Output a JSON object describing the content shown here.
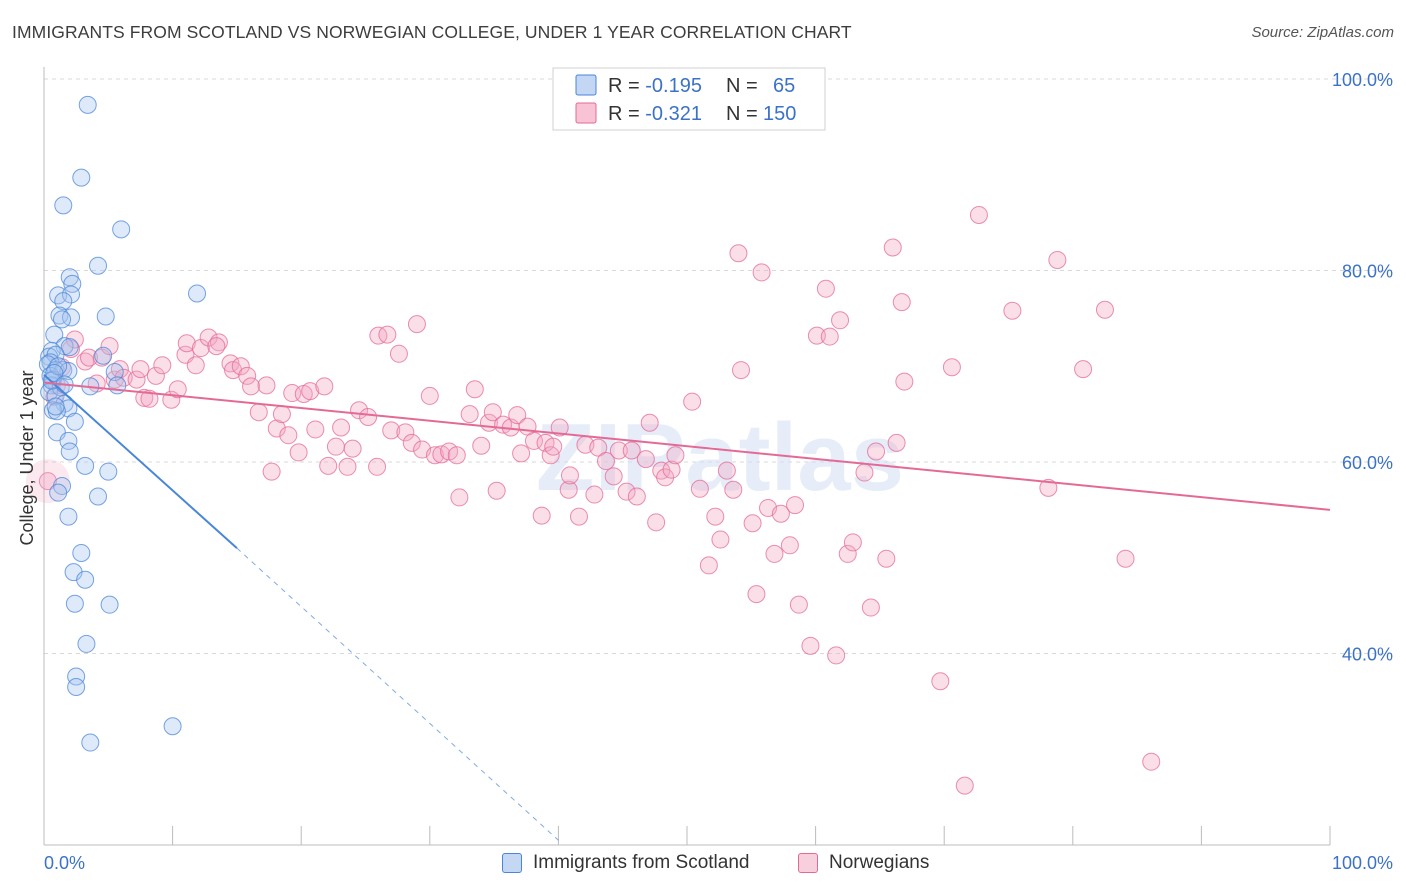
{
  "title": "IMMIGRANTS FROM SCOTLAND VS NORWEGIAN COLLEGE, UNDER 1 YEAR CORRELATION CHART",
  "source": "Source: ZipAtlas.com",
  "watermark": "ZIPatlas",
  "colors": {
    "blue": "#4a86d8",
    "blue_fill": "#a9c6ef",
    "pink": "#e46a96",
    "pink_fill": "#f3a9c3",
    "tick_text": "#3b72c8",
    "grid": "#d9d9d9"
  },
  "legend": {
    "rows": [
      {
        "r_label": "R = ",
        "r_value": "-0.195",
        "n_label": "N = ",
        "n_value": "65"
      },
      {
        "r_label": "R = ",
        "r_value": "-0.321",
        "n_label": "N = ",
        "n_value": "150"
      }
    ]
  },
  "chart_data": {
    "type": "scatter",
    "title": "IMMIGRANTS FROM SCOTLAND VS NORWEGIAN COLLEGE, UNDER 1 YEAR CORRELATION CHART",
    "xlabel": "",
    "ylabel": "College, Under 1 year",
    "xlim": [
      0,
      100
    ],
    "ylim": [
      20,
      100
    ],
    "x_tick_labels": [
      "0.0%",
      "100.0%"
    ],
    "y_tick_labels": [
      "40.0%",
      "60.0%",
      "80.0%",
      "100.0%"
    ],
    "y_ticks": [
      40,
      60,
      80,
      100
    ],
    "grid": true,
    "legend_position": "top-center",
    "series": [
      {
        "name": "Immigrants from Scotland",
        "color": "#4a86d8",
        "r": -0.195,
        "n": 65,
        "trend": {
          "x": [
            0,
            15
          ],
          "y": [
            69.1,
            51.0
          ],
          "dashed_to": [
            40,
            20.5
          ]
        },
        "points": [
          [
            3.4,
            97.3
          ],
          [
            2.9,
            89.7
          ],
          [
            1.5,
            86.8
          ],
          [
            6.0,
            84.3
          ],
          [
            4.2,
            80.5
          ],
          [
            2.0,
            79.3
          ],
          [
            2.2,
            78.6
          ],
          [
            1.1,
            77.4
          ],
          [
            2.1,
            77.5
          ],
          [
            1.5,
            76.8
          ],
          [
            11.9,
            77.6
          ],
          [
            1.2,
            75.3
          ],
          [
            2.1,
            75.1
          ],
          [
            1.4,
            74.9
          ],
          [
            4.8,
            75.2
          ],
          [
            0.8,
            73.3
          ],
          [
            1.6,
            72.1
          ],
          [
            2.0,
            72.0
          ],
          [
            0.6,
            71.6
          ],
          [
            0.4,
            71.0
          ],
          [
            0.9,
            71.2
          ],
          [
            4.6,
            71.1
          ],
          [
            0.5,
            70.4
          ],
          [
            0.3,
            70.2
          ],
          [
            1.5,
            69.6
          ],
          [
            0.9,
            69.6
          ],
          [
            1.9,
            69.5
          ],
          [
            0.5,
            69.0
          ],
          [
            5.5,
            69.4
          ],
          [
            0.7,
            68.6
          ],
          [
            0.6,
            68.0
          ],
          [
            5.7,
            68.0
          ],
          [
            0.4,
            67.3
          ],
          [
            1.3,
            67.8
          ],
          [
            3.6,
            67.9
          ],
          [
            0.9,
            66.9
          ],
          [
            1.6,
            66.1
          ],
          [
            1.9,
            65.6
          ],
          [
            0.7,
            65.4
          ],
          [
            1.0,
            65.3
          ],
          [
            2.4,
            64.2
          ],
          [
            1.0,
            63.1
          ],
          [
            1.9,
            62.2
          ],
          [
            2.0,
            61.1
          ],
          [
            3.2,
            59.6
          ],
          [
            5.0,
            59.0
          ],
          [
            1.4,
            57.5
          ],
          [
            1.1,
            56.8
          ],
          [
            4.2,
            56.4
          ],
          [
            1.9,
            54.3
          ],
          [
            2.9,
            50.5
          ],
          [
            2.3,
            48.5
          ],
          [
            3.2,
            47.7
          ],
          [
            2.4,
            45.2
          ],
          [
            5.1,
            45.1
          ],
          [
            3.3,
            41.0
          ],
          [
            2.5,
            37.6
          ],
          [
            2.5,
            36.5
          ],
          [
            3.6,
            30.7
          ],
          [
            10.0,
            32.4
          ],
          [
            0.6,
            68.5
          ],
          [
            1.1,
            70.0
          ],
          [
            0.8,
            69.3
          ],
          [
            1.6,
            68.1
          ],
          [
            0.9,
            65.8
          ]
        ]
      },
      {
        "name": "Norwegians",
        "color": "#e46a96",
        "r": -0.321,
        "n": 150,
        "trend": {
          "x": [
            0,
            100
          ],
          "y": [
            68.3,
            55.0
          ]
        },
        "points": [
          [
            0.3,
            58.0
          ],
          [
            0.8,
            66.8
          ],
          [
            1.0,
            68.0
          ],
          [
            1.4,
            69.9
          ],
          [
            2.1,
            71.8
          ],
          [
            2.4,
            72.8
          ],
          [
            3.2,
            70.5
          ],
          [
            3.5,
            70.9
          ],
          [
            4.1,
            68.2
          ],
          [
            4.5,
            70.9
          ],
          [
            5.1,
            72.1
          ],
          [
            5.5,
            68.6
          ],
          [
            5.9,
            69.7
          ],
          [
            6.2,
            68.8
          ],
          [
            7.2,
            68.6
          ],
          [
            7.5,
            69.7
          ],
          [
            7.8,
            66.7
          ],
          [
            8.2,
            66.6
          ],
          [
            8.7,
            69.0
          ],
          [
            9.2,
            70.1
          ],
          [
            9.9,
            66.5
          ],
          [
            10.4,
            67.6
          ],
          [
            11.0,
            71.2
          ],
          [
            11.1,
            72.4
          ],
          [
            11.8,
            70.1
          ],
          [
            12.2,
            71.9
          ],
          [
            12.8,
            73.0
          ],
          [
            13.6,
            72.5
          ],
          [
            13.4,
            72.1
          ],
          [
            14.5,
            70.3
          ],
          [
            14.7,
            69.6
          ],
          [
            15.3,
            70.0
          ],
          [
            15.8,
            69.0
          ],
          [
            16.1,
            67.9
          ],
          [
            16.7,
            65.2
          ],
          [
            17.3,
            68.0
          ],
          [
            17.7,
            59.0
          ],
          [
            18.1,
            63.5
          ],
          [
            18.5,
            65.0
          ],
          [
            19.0,
            62.8
          ],
          [
            19.3,
            67.2
          ],
          [
            19.8,
            61.0
          ],
          [
            20.2,
            67.1
          ],
          [
            20.7,
            67.4
          ],
          [
            21.1,
            63.4
          ],
          [
            21.8,
            67.9
          ],
          [
            22.1,
            59.6
          ],
          [
            22.7,
            61.6
          ],
          [
            23.1,
            63.6
          ],
          [
            23.6,
            59.5
          ],
          [
            24.0,
            61.4
          ],
          [
            24.5,
            65.4
          ],
          [
            25.2,
            64.7
          ],
          [
            25.9,
            59.5
          ],
          [
            26.0,
            73.2
          ],
          [
            26.7,
            73.3
          ],
          [
            27.0,
            63.3
          ],
          [
            27.6,
            71.3
          ],
          [
            28.1,
            63.1
          ],
          [
            28.6,
            62.0
          ],
          [
            29.0,
            74.4
          ],
          [
            29.4,
            61.3
          ],
          [
            30.0,
            66.9
          ],
          [
            30.4,
            60.7
          ],
          [
            30.9,
            60.8
          ],
          [
            31.5,
            61.1
          ],
          [
            32.1,
            60.7
          ],
          [
            32.3,
            56.3
          ],
          [
            33.1,
            65.0
          ],
          [
            33.5,
            67.6
          ],
          [
            34.0,
            61.7
          ],
          [
            34.6,
            64.1
          ],
          [
            34.9,
            65.2
          ],
          [
            35.2,
            57.0
          ],
          [
            35.7,
            63.9
          ],
          [
            36.3,
            63.6
          ],
          [
            36.8,
            64.9
          ],
          [
            37.1,
            60.9
          ],
          [
            37.6,
            63.7
          ],
          [
            38.1,
            62.2
          ],
          [
            38.7,
            54.4
          ],
          [
            39.0,
            62.0
          ],
          [
            39.4,
            60.7
          ],
          [
            39.6,
            61.6
          ],
          [
            40.1,
            63.6
          ],
          [
            40.8,
            57.1
          ],
          [
            40.9,
            58.6
          ],
          [
            41.6,
            54.3
          ],
          [
            42.1,
            61.8
          ],
          [
            42.8,
            56.6
          ],
          [
            43.1,
            61.5
          ],
          [
            43.7,
            60.1
          ],
          [
            44.3,
            58.5
          ],
          [
            44.7,
            61.2
          ],
          [
            45.3,
            56.9
          ],
          [
            45.7,
            61.2
          ],
          [
            46.1,
            56.4
          ],
          [
            46.8,
            60.3
          ],
          [
            47.1,
            64.1
          ],
          [
            47.6,
            53.7
          ],
          [
            48.0,
            59.1
          ],
          [
            48.3,
            58.4
          ],
          [
            48.8,
            59.2
          ],
          [
            49.1,
            60.7
          ],
          [
            50.4,
            66.3
          ],
          [
            51.0,
            57.2
          ],
          [
            51.7,
            49.2
          ],
          [
            52.2,
            54.3
          ],
          [
            52.6,
            51.9
          ],
          [
            53.1,
            59.1
          ],
          [
            53.6,
            57.1
          ],
          [
            54.0,
            81.8
          ],
          [
            54.2,
            69.6
          ],
          [
            55.1,
            53.6
          ],
          [
            55.4,
            46.2
          ],
          [
            55.8,
            79.8
          ],
          [
            56.3,
            55.2
          ],
          [
            56.8,
            50.4
          ],
          [
            57.3,
            54.6
          ],
          [
            58.0,
            51.3
          ],
          [
            58.4,
            55.5
          ],
          [
            58.7,
            45.1
          ],
          [
            59.1,
            96.4
          ],
          [
            59.6,
            40.8
          ],
          [
            60.1,
            73.2
          ],
          [
            60.8,
            78.1
          ],
          [
            61.1,
            73.1
          ],
          [
            61.6,
            39.8
          ],
          [
            61.9,
            74.8
          ],
          [
            62.5,
            50.4
          ],
          [
            62.9,
            51.6
          ],
          [
            63.8,
            58.9
          ],
          [
            64.3,
            44.8
          ],
          [
            64.7,
            61.1
          ],
          [
            65.5,
            49.9
          ],
          [
            66.0,
            82.4
          ],
          [
            66.3,
            62.0
          ],
          [
            66.7,
            76.7
          ],
          [
            66.9,
            68.4
          ],
          [
            69.7,
            37.1
          ],
          [
            70.6,
            69.9
          ],
          [
            71.6,
            26.2
          ],
          [
            72.7,
            85.8
          ],
          [
            75.3,
            75.8
          ],
          [
            78.1,
            57.3
          ],
          [
            78.8,
            81.1
          ],
          [
            80.8,
            69.7
          ],
          [
            82.5,
            75.9
          ],
          [
            84.1,
            49.9
          ],
          [
            86.1,
            28.7
          ]
        ]
      }
    ]
  },
  "bottom_legend": [
    {
      "label": "Immigrants from Scotland"
    },
    {
      "label": "Norwegians"
    }
  ]
}
